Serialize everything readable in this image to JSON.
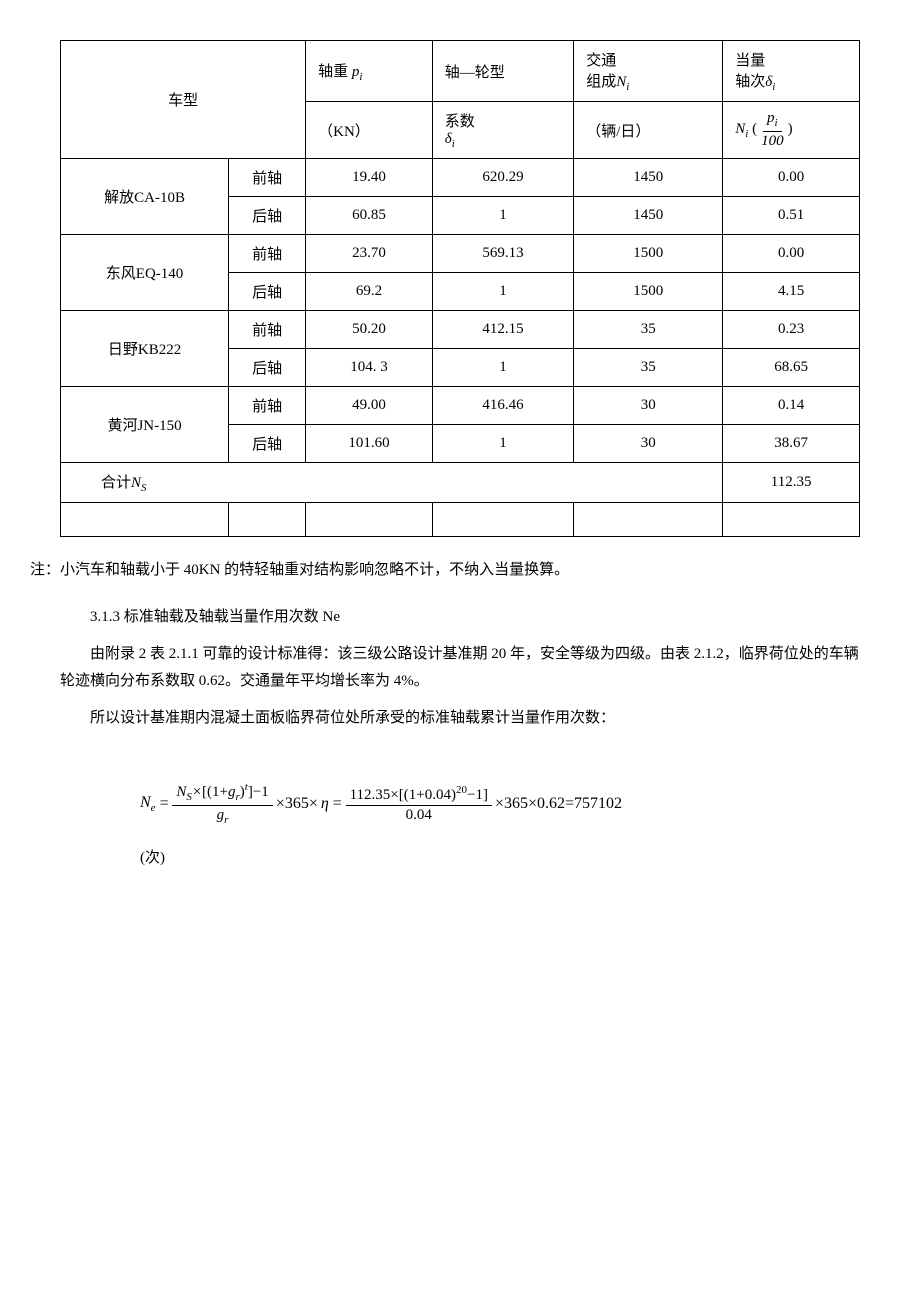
{
  "table": {
    "header": {
      "col1": "车型",
      "col2_top": "轴重",
      "col2_var": "p",
      "col2_sub": "i",
      "col2_unit": "（KN）",
      "col3_top": "轴—轮型",
      "col3_label": "系数",
      "col3_var": "δ",
      "col3_sub": "i",
      "col4_top": "交通",
      "col4_label": "组成",
      "col4_var": "N",
      "col4_sub": "i",
      "col4_unit": "（辆/日）",
      "col5_top": "当量",
      "col5_label": "轴次",
      "col5_var": "δ",
      "col5_sub": "i",
      "col5_formula_n": "N",
      "col5_formula_sub": "i",
      "col5_frac_num": "p",
      "col5_frac_nums": "i",
      "col5_frac_den": "100"
    },
    "rows": [
      {
        "vehicle": "解放CA-10B",
        "axle1": "前轴",
        "weight1": "19.40",
        "coef1": "620.29",
        "traffic1": "1450",
        "equiv1": "0.00",
        "axle2": "后轴",
        "weight2": "60.85",
        "coef2": "1",
        "traffic2": "1450",
        "equiv2": "0.51"
      },
      {
        "vehicle": "东风EQ-140",
        "axle1": "前轴",
        "weight1": "23.70",
        "coef1": "569.13",
        "traffic1": "1500",
        "equiv1": "0.00",
        "axle2": "后轴",
        "weight2": "69.2",
        "coef2": "1",
        "traffic2": "1500",
        "equiv2": "4.15"
      },
      {
        "vehicle": "日野KB222",
        "axle1": "前轴",
        "weight1": "50.20",
        "coef1": "412.15",
        "traffic1": "35",
        "equiv1": "0.23",
        "axle2": "后轴",
        "weight2": "104. 3",
        "coef2": "1",
        "traffic2": "35",
        "equiv2": "68.65"
      },
      {
        "vehicle": "黄河JN-150",
        "axle1": "前轴",
        "weight1": "49.00",
        "coef1": "416.46",
        "traffic1": "30",
        "equiv1": "0.14",
        "axle2": "后轴",
        "weight2": "101.60",
        "coef2": "1",
        "traffic2": "30",
        "equiv2": "38.67"
      }
    ],
    "total_label": "合计",
    "total_var": "N",
    "total_sub": "S",
    "total_value": "112.35"
  },
  "note": "注：小汽车和轴载小于 40KN 的特轻轴重对结构影响忽略不计，不纳入当量换算。",
  "section": "3.1.3 标准轴载及轴载当量作用次数 Ne",
  "paragraph1": "由附录 2 表 2.1.1 可靠的设计标准得：该三级公路设计基准期 20 年，安全等级为四级。由表 2.1.2，临界荷位处的车辆轮迹横向分布系数取 0.62。交通量年平均增长率为 4%。",
  "paragraph2": "所以设计基准期内混凝土面板临界荷位处所承受的标准轴载累计当量作用次数：",
  "formula": {
    "lhs_var": "N",
    "lhs_sub": "e",
    "eq": "=",
    "ns_var": "N",
    "ns_sub": "S",
    "times": "×",
    "lbrack": "[",
    "rbrack": "]",
    "lparen": "(",
    "rparen": ")",
    "one": "1",
    "plus": "+",
    "g_var": "g",
    "g_sub": "r",
    "t_var": "t",
    "minus": "−",
    "n365": "365",
    "eta": "η",
    "val_ns": "112.35",
    "val_g": "0.04",
    "val_t": "20",
    "val_0062": "0.62",
    "result": "757102"
  },
  "unit": "(次)",
  "colors": {
    "border": "#000000",
    "text": "#000000",
    "background": "#ffffff",
    "watermark": "#d0d0d0"
  }
}
